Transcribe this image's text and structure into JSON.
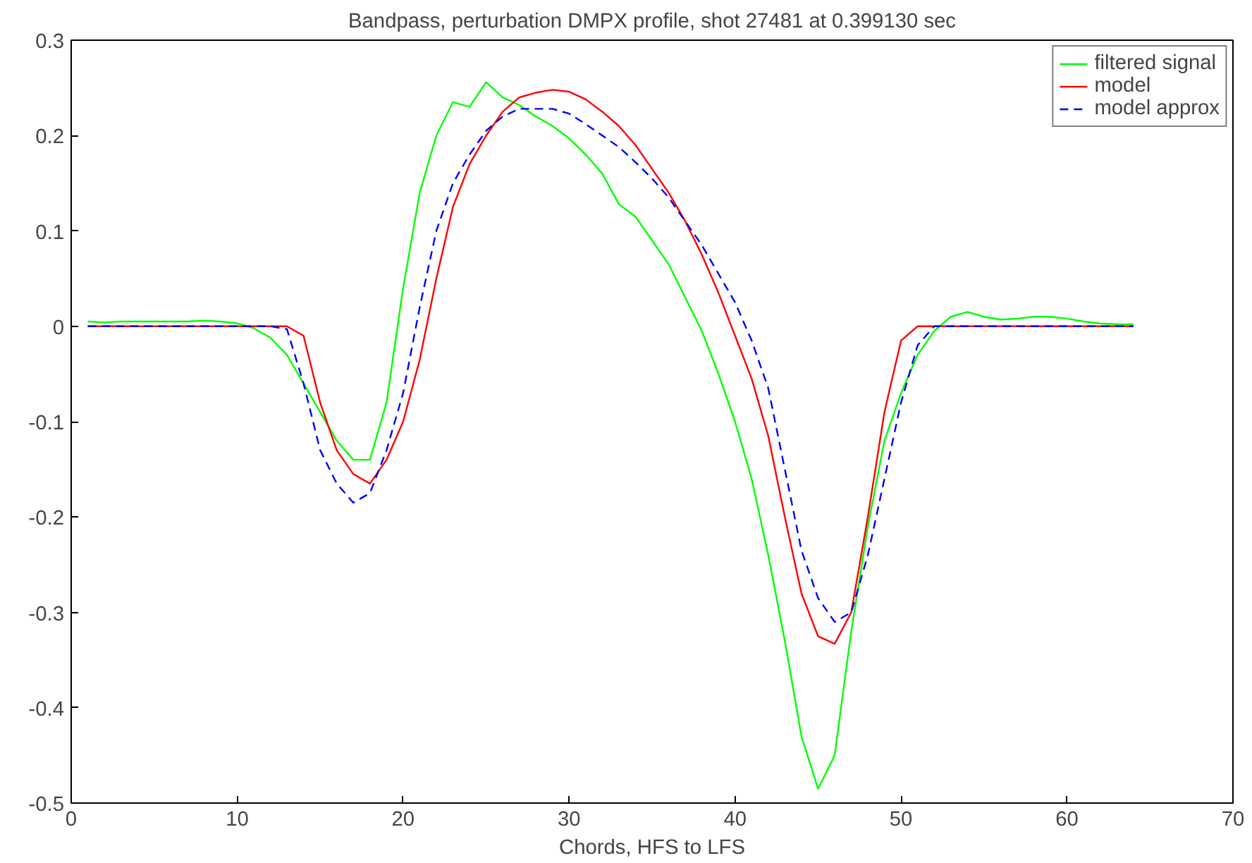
{
  "chart_data": {
    "type": "line",
    "title": "Bandpass, perturbation DMPX profile, shot 27481 at 0.399130 sec",
    "xlabel": "Chords, HFS to LFS",
    "x": [
      1,
      2,
      3,
      4,
      5,
      6,
      7,
      8,
      9,
      10,
      11,
      12,
      13,
      14,
      15,
      16,
      17,
      18,
      19,
      20,
      21,
      22,
      23,
      24,
      25,
      26,
      27,
      28,
      29,
      30,
      31,
      32,
      33,
      34,
      35,
      36,
      37,
      38,
      39,
      40,
      41,
      42,
      43,
      44,
      45,
      46,
      47,
      48,
      49,
      50,
      51,
      52,
      53,
      54,
      55,
      56,
      57,
      58,
      59,
      60,
      61,
      62,
      63,
      64
    ],
    "series": [
      {
        "name": "filtered signal",
        "color": "#00ff00",
        "line_style": "solid",
        "values": [
          0.005,
          0.004,
          0.005,
          0.005,
          0.005,
          0.005,
          0.005,
          0.006,
          0.005,
          0.003,
          -0.002,
          -0.012,
          -0.03,
          -0.06,
          -0.09,
          -0.12,
          -0.14,
          -0.14,
          -0.08,
          0.04,
          0.14,
          0.2,
          0.235,
          0.23,
          0.256,
          0.24,
          0.232,
          0.22,
          0.21,
          0.197,
          0.18,
          0.16,
          0.128,
          0.115,
          0.09,
          0.065,
          0.03,
          -0.005,
          -0.05,
          -0.1,
          -0.16,
          -0.24,
          -0.33,
          -0.43,
          -0.485,
          -0.45,
          -0.32,
          -0.21,
          -0.12,
          -0.07,
          -0.03,
          -0.005,
          0.01,
          0.015,
          0.01,
          0.007,
          0.008,
          0.01,
          0.01,
          0.008,
          0.005,
          0.003,
          0.002,
          0.002
        ]
      },
      {
        "name": "model",
        "color": "#ff0000",
        "line_style": "solid",
        "values": [
          0,
          0,
          0,
          0,
          0,
          0,
          0,
          0,
          0,
          0,
          0,
          0,
          0,
          -0.01,
          -0.08,
          -0.13,
          -0.155,
          -0.165,
          -0.14,
          -0.1,
          -0.035,
          0.05,
          0.125,
          0.17,
          0.2,
          0.225,
          0.24,
          0.245,
          0.248,
          0.246,
          0.238,
          0.225,
          0.21,
          0.19,
          0.165,
          0.14,
          0.11,
          0.075,
          0.035,
          -0.01,
          -0.055,
          -0.115,
          -0.2,
          -0.28,
          -0.325,
          -0.333,
          -0.3,
          -0.2,
          -0.09,
          -0.015,
          0,
          0,
          0,
          0,
          0,
          0,
          0,
          0,
          0,
          0,
          0,
          0,
          0,
          0
        ]
      },
      {
        "name": "model approx",
        "color": "#0000ff",
        "line_style": "dashed",
        "values": [
          0,
          0,
          0,
          0,
          0,
          0,
          0,
          0,
          0,
          0,
          0,
          0,
          -0.003,
          -0.06,
          -0.13,
          -0.165,
          -0.185,
          -0.175,
          -0.13,
          -0.07,
          0.02,
          0.1,
          0.15,
          0.18,
          0.205,
          0.22,
          0.228,
          0.228,
          0.228,
          0.223,
          0.212,
          0.2,
          0.188,
          0.172,
          0.155,
          0.135,
          0.11,
          0.085,
          0.055,
          0.025,
          -0.015,
          -0.065,
          -0.15,
          -0.235,
          -0.285,
          -0.31,
          -0.3,
          -0.24,
          -0.16,
          -0.08,
          -0.02,
          0,
          0,
          0,
          0,
          0,
          0,
          0,
          0,
          0,
          0,
          0,
          0,
          0
        ]
      }
    ],
    "xlim": [
      0,
      70
    ],
    "xticks": [
      0,
      10,
      20,
      30,
      40,
      50,
      60,
      70
    ],
    "ylim": [
      -0.5,
      0.3
    ],
    "yticks": [
      -0.5,
      -0.4,
      -0.3,
      -0.2,
      -0.1,
      0,
      0.1,
      0.2,
      0.3
    ],
    "grid": false,
    "legend": "top right"
  }
}
